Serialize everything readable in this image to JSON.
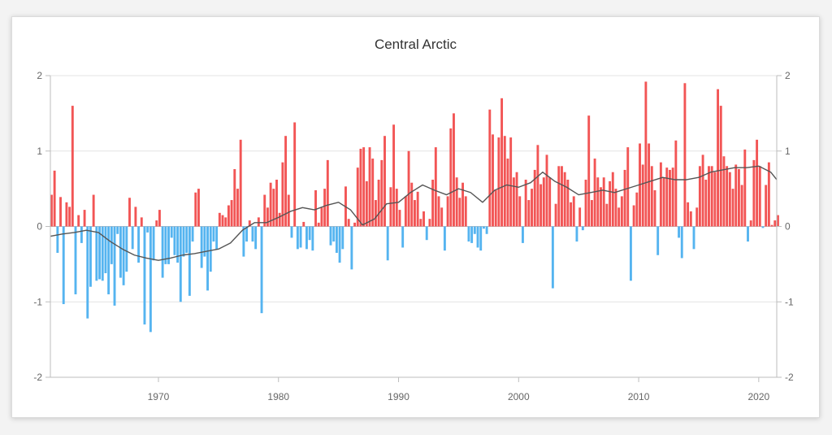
{
  "chart_data": {
    "type": "bar",
    "title": "Central Arctic",
    "xlabel": "",
    "ylabel": "",
    "xlim": [
      1961,
      2021.5
    ],
    "ylim": [
      -2,
      2
    ],
    "grid": true,
    "x_ticks": [
      "1970",
      "1980",
      "1990",
      "2000",
      "2010",
      "2020"
    ],
    "y_ticks": [
      "2",
      "1",
      "0",
      "-1",
      "-2"
    ],
    "colors": {
      "positive": "#f25555",
      "negative": "#55b4f0",
      "trend": "#555555"
    },
    "start_year": 1961,
    "step": 0.25,
    "values": [
      0.42,
      0.74,
      -0.35,
      0.39,
      -1.03,
      0.32,
      0.26,
      1.6,
      -0.9,
      0.15,
      -0.22,
      0.22,
      -1.22,
      -0.8,
      0.42,
      -0.72,
      -0.7,
      -0.72,
      -0.62,
      -0.9,
      -0.5,
      -1.05,
      -0.1,
      -0.68,
      -0.78,
      -0.6,
      0.38,
      -0.3,
      0.26,
      -0.48,
      0.12,
      -1.3,
      -0.08,
      -1.4,
      -0.45,
      0.08,
      0.22,
      -0.68,
      -0.5,
      -0.5,
      -0.15,
      -0.38,
      -0.48,
      -1.0,
      -0.4,
      -0.35,
      -0.92,
      -0.2,
      0.45,
      0.5,
      -0.55,
      -0.4,
      -0.85,
      -0.6,
      -0.2,
      -0.3,
      0.18,
      0.15,
      0.12,
      0.28,
      0.35,
      0.76,
      0.5,
      1.15,
      -0.4,
      -0.2,
      0.08,
      -0.2,
      -0.3,
      0.12,
      -1.15,
      0.42,
      0.25,
      0.58,
      0.5,
      0.62,
      0.18,
      0.85,
      1.2,
      0.42,
      -0.15,
      1.38,
      -0.3,
      -0.28,
      0.06,
      -0.3,
      -0.18,
      -0.32,
      0.48,
      0.05,
      0.25,
      0.5,
      0.88,
      -0.25,
      -0.2,
      -0.35,
      -0.48,
      -0.3,
      0.53,
      0.1,
      -0.57,
      0.05,
      0.78,
      1.03,
      1.05,
      0.6,
      1.05,
      0.9,
      0.35,
      0.62,
      0.88,
      1.2,
      -0.45,
      0.52,
      1.35,
      0.5,
      0.22,
      -0.28,
      0.4,
      1.0,
      0.58,
      0.35,
      0.46,
      0.1,
      0.2,
      -0.18,
      0.1,
      0.62,
      1.05,
      0.4,
      0.25,
      -0.32,
      0.4,
      1.3,
      1.5,
      0.65,
      0.38,
      0.58,
      0.4,
      -0.2,
      -0.22,
      -0.1,
      -0.28,
      -0.32,
      -0.03,
      -0.1,
      1.55,
      1.22,
      0.48,
      1.18,
      1.7,
      1.2,
      0.9,
      1.18,
      0.65,
      0.72,
      0.4,
      -0.22,
      0.62,
      0.35,
      0.5,
      0.75,
      1.08,
      0.56,
      0.65,
      0.95,
      0.65,
      -0.82,
      0.3,
      0.8,
      0.8,
      0.72,
      0.62,
      0.32,
      0.4,
      -0.2,
      0.25,
      -0.05,
      0.62,
      1.47,
      0.35,
      0.9,
      0.65,
      0.52,
      0.65,
      0.3,
      0.6,
      0.72,
      0.5,
      0.25,
      0.4,
      0.75,
      1.05,
      -0.72,
      0.28,
      0.45,
      1.1,
      0.82,
      1.92,
      1.1,
      0.8,
      0.48,
      -0.38,
      0.85,
      0.65,
      0.78,
      0.75,
      0.78,
      1.14,
      -0.15,
      -0.42,
      1.9,
      0.32,
      0.2,
      -0.3,
      0.25,
      0.8,
      0.95,
      0.62,
      0.8,
      0.8,
      0.72,
      1.82,
      1.6,
      0.93,
      0.8,
      0.72,
      0.5,
      0.82,
      0.76,
      0.55,
      1.02,
      -0.2,
      0.08,
      0.88,
      1.15,
      0.8,
      -0.02,
      0.55,
      0.85,
      0.02,
      0.08,
      0.15
    ],
    "trend": [
      [
        1961,
        -0.13
      ],
      [
        1962,
        -0.1
      ],
      [
        1963,
        -0.08
      ],
      [
        1964,
        -0.05
      ],
      [
        1965,
        -0.08
      ],
      [
        1966,
        -0.2
      ],
      [
        1967,
        -0.3
      ],
      [
        1968,
        -0.38
      ],
      [
        1969,
        -0.42
      ],
      [
        1970,
        -0.45
      ],
      [
        1971,
        -0.42
      ],
      [
        1972,
        -0.38
      ],
      [
        1973,
        -0.36
      ],
      [
        1974,
        -0.33
      ],
      [
        1975,
        -0.3
      ],
      [
        1976,
        -0.22
      ],
      [
        1977,
        -0.05
      ],
      [
        1978,
        0.05
      ],
      [
        1979,
        0.05
      ],
      [
        1980,
        0.12
      ],
      [
        1981,
        0.2
      ],
      [
        1982,
        0.25
      ],
      [
        1983,
        0.22
      ],
      [
        1984,
        0.28
      ],
      [
        1985,
        0.32
      ],
      [
        1986,
        0.22
      ],
      [
        1987,
        0.02
      ],
      [
        1988,
        0.1
      ],
      [
        1989,
        0.3
      ],
      [
        1990,
        0.32
      ],
      [
        1991,
        0.45
      ],
      [
        1992,
        0.55
      ],
      [
        1993,
        0.48
      ],
      [
        1994,
        0.42
      ],
      [
        1995,
        0.5
      ],
      [
        1996,
        0.45
      ],
      [
        1997,
        0.32
      ],
      [
        1998,
        0.48
      ],
      [
        1999,
        0.55
      ],
      [
        2000,
        0.52
      ],
      [
        2001,
        0.58
      ],
      [
        2002,
        0.72
      ],
      [
        2003,
        0.6
      ],
      [
        2004,
        0.52
      ],
      [
        2005,
        0.42
      ],
      [
        2006,
        0.45
      ],
      [
        2007,
        0.48
      ],
      [
        2008,
        0.45
      ],
      [
        2009,
        0.5
      ],
      [
        2010,
        0.55
      ],
      [
        2011,
        0.6
      ],
      [
        2012,
        0.65
      ],
      [
        2013,
        0.62
      ],
      [
        2014,
        0.62
      ],
      [
        2015,
        0.65
      ],
      [
        2016,
        0.72
      ],
      [
        2017,
        0.75
      ],
      [
        2018,
        0.78
      ],
      [
        2019,
        0.78
      ],
      [
        2020,
        0.8
      ],
      [
        2021,
        0.72
      ],
      [
        2021.5,
        0.62
      ]
    ]
  }
}
